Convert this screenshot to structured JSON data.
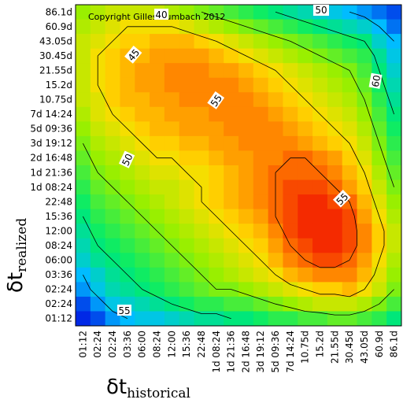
{
  "chart_data": {
    "type": "heatmap",
    "title": "",
    "copyright": "Copyright Gilles Zumbach 2012",
    "xlabel": {
      "symbol": "δt",
      "subscript": "historical"
    },
    "ylabel": {
      "symbol": "δt",
      "subscript": "realized"
    },
    "x_ticks": [
      "01:12",
      "02:24",
      "02:24",
      "03:36",
      "06:00",
      "08:24",
      "12:00",
      "15:36",
      "22:48",
      "1d 08:24",
      "1d 21:36",
      "2d 16:48",
      "3d 19:12",
      "5d 09:36",
      "7d 14:24",
      "10.75d",
      "15.2d",
      "21.55d",
      "30.45d",
      "43.05d",
      "60.9d",
      "86.1d"
    ],
    "y_ticks": [
      "86.1d",
      "60.9d",
      "43.05d",
      "30.45d",
      "21.55d",
      "15.2d",
      "10.75d",
      "7d 14:24",
      "5d 09:36",
      "3d 19:12",
      "2d 16:48",
      "1d 21:36",
      "1d 08:24",
      "22:48",
      "15:36",
      "12:00",
      "08:24",
      "06:00",
      "03:36",
      "02:24",
      "02:24",
      "01:12"
    ],
    "contour_levels": [
      40,
      45,
      50,
      55,
      60
    ],
    "contour_labels": [
      "40",
      "45",
      "50",
      "55",
      "55",
      "60"
    ],
    "color_range": [
      36,
      63
    ],
    "grid": false,
    "legend": "none",
    "values": [
      [
        51,
        52,
        53,
        53,
        53,
        53,
        52,
        51,
        50,
        49,
        48,
        47,
        46,
        45,
        44,
        43,
        42,
        41,
        40,
        39,
        38,
        37
      ],
      [
        52,
        53,
        54,
        55,
        55,
        55,
        55,
        54,
        53,
        52,
        51,
        50,
        49,
        48,
        47,
        46,
        45,
        44,
        43,
        42,
        40,
        38
      ],
      [
        53,
        54,
        55,
        56,
        56,
        57,
        57,
        57,
        56,
        55,
        54,
        53,
        52,
        51,
        50,
        49,
        48,
        47,
        46,
        45,
        42,
        40
      ],
      [
        53,
        55,
        56,
        57,
        57,
        58,
        58,
        58,
        58,
        57,
        56,
        55,
        54,
        53,
        52,
        51,
        50,
        49,
        48,
        47,
        44,
        41
      ],
      [
        53,
        55,
        56,
        57,
        58,
        58,
        59,
        59,
        59,
        58,
        58,
        57,
        56,
        55,
        54,
        53,
        52,
        51,
        50,
        48,
        45,
        42
      ],
      [
        53,
        55,
        56,
        57,
        58,
        58,
        59,
        59,
        59,
        59,
        59,
        58,
        57,
        56,
        55,
        54,
        53,
        52,
        51,
        49,
        46,
        43
      ],
      [
        53,
        54,
        56,
        57,
        57,
        58,
        58,
        59,
        59,
        59,
        59,
        59,
        58,
        57,
        56,
        55,
        54,
        53,
        52,
        50,
        47,
        44
      ],
      [
        52,
        54,
        55,
        56,
        57,
        57,
        58,
        58,
        58,
        59,
        59,
        59,
        59,
        58,
        57,
        56,
        55,
        54,
        53,
        51,
        48,
        45
      ],
      [
        51,
        53,
        54,
        55,
        56,
        57,
        57,
        58,
        58,
        58,
        59,
        59,
        59,
        59,
        58,
        57,
        56,
        55,
        54,
        52,
        49,
        46
      ],
      [
        50,
        52,
        53,
        54,
        55,
        56,
        56,
        57,
        57,
        58,
        58,
        59,
        59,
        59,
        59,
        58,
        57,
        56,
        55,
        53,
        50,
        47
      ],
      [
        49,
        51,
        52,
        53,
        54,
        55,
        55,
        56,
        56,
        57,
        58,
        58,
        59,
        59,
        60,
        60,
        59,
        58,
        56,
        54,
        51,
        48
      ],
      [
        48,
        50,
        51,
        52,
        53,
        54,
        54,
        55,
        55,
        56,
        57,
        58,
        59,
        60,
        60,
        60,
        60,
        59,
        57,
        55,
        52,
        49
      ],
      [
        47,
        49,
        50,
        51,
        52,
        53,
        53,
        54,
        55,
        56,
        57,
        58,
        59,
        60,
        61,
        61,
        61,
        60,
        58,
        56,
        53,
        50
      ],
      [
        46,
        48,
        49,
        50,
        51,
        52,
        53,
        54,
        55,
        56,
        57,
        58,
        59,
        60,
        61,
        62,
        62,
        61,
        60,
        57,
        54,
        51
      ],
      [
        45,
        47,
        48,
        49,
        50,
        51,
        52,
        53,
        54,
        55,
        56,
        57,
        58,
        60,
        61,
        62,
        62,
        62,
        61,
        58,
        55,
        52
      ],
      [
        44,
        46,
        47,
        48,
        49,
        50,
        51,
        52,
        53,
        54,
        55,
        56,
        57,
        59,
        61,
        62,
        62,
        62,
        61,
        59,
        56,
        53
      ],
      [
        43,
        45,
        46,
        47,
        48,
        49,
        50,
        51,
        52,
        53,
        54,
        55,
        56,
        58,
        60,
        61,
        62,
        62,
        61,
        59,
        56,
        53
      ],
      [
        42,
        44,
        45,
        46,
        47,
        48,
        49,
        50,
        51,
        52,
        53,
        54,
        55,
        57,
        59,
        60,
        61,
        61,
        60,
        58,
        55,
        52
      ],
      [
        40,
        42,
        44,
        45,
        46,
        47,
        48,
        49,
        50,
        51,
        52,
        53,
        54,
        55,
        57,
        58,
        59,
        59,
        59,
        57,
        54,
        51
      ],
      [
        39,
        41,
        43,
        44,
        45,
        46,
        47,
        48,
        49,
        50,
        50,
        51,
        52,
        53,
        54,
        55,
        56,
        56,
        57,
        55,
        53,
        50
      ],
      [
        37,
        39,
        41,
        42,
        43,
        44,
        45,
        46,
        47,
        47,
        48,
        48,
        49,
        50,
        51,
        52,
        53,
        53,
        53,
        52,
        50,
        48
      ],
      [
        35,
        37,
        39,
        40,
        41,
        41,
        42,
        43,
        44,
        44,
        45,
        45,
        46,
        47,
        47,
        48,
        48,
        49,
        49,
        48,
        47,
        45
      ]
    ]
  }
}
